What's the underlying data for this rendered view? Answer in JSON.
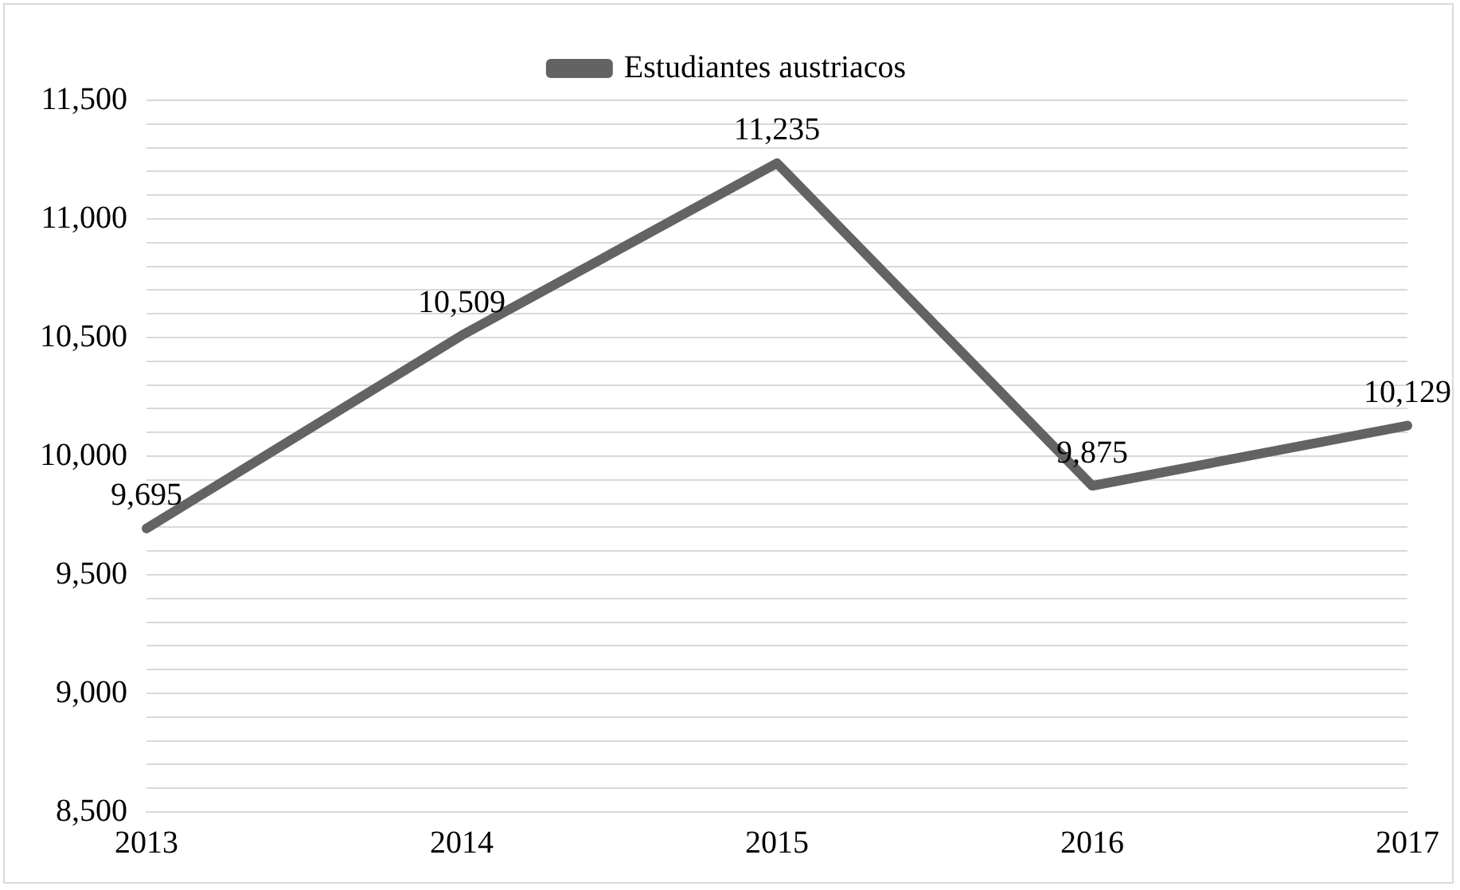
{
  "chart_data": {
    "type": "line",
    "categories": [
      "2013",
      "2014",
      "2015",
      "2016",
      "2017"
    ],
    "series": [
      {
        "name": "Estudiantes austriacos",
        "color": "#636363",
        "values": [
          9695,
          10509,
          11235,
          9875,
          10129
        ],
        "value_labels": [
          "9,695",
          "10,509",
          "11,235",
          "9,875",
          "10,129"
        ]
      }
    ],
    "ylim": [
      8500,
      11500
    ],
    "yticks": [
      {
        "value": 8500,
        "label": "8,500"
      },
      {
        "value": 8600,
        "label": null
      },
      {
        "value": 8700,
        "label": null
      },
      {
        "value": 8800,
        "label": null
      },
      {
        "value": 8900,
        "label": null
      },
      {
        "value": 9000,
        "label": "9,000"
      },
      {
        "value": 9100,
        "label": null
      },
      {
        "value": 9200,
        "label": null
      },
      {
        "value": 9300,
        "label": null
      },
      {
        "value": 9400,
        "label": null
      },
      {
        "value": 9500,
        "label": "9,500"
      },
      {
        "value": 9600,
        "label": null
      },
      {
        "value": 9700,
        "label": null
      },
      {
        "value": 9800,
        "label": null
      },
      {
        "value": 9900,
        "label": null
      },
      {
        "value": 10000,
        "label": "10,000"
      },
      {
        "value": 10100,
        "label": null
      },
      {
        "value": 10200,
        "label": null
      },
      {
        "value": 10300,
        "label": null
      },
      {
        "value": 10400,
        "label": null
      },
      {
        "value": 10500,
        "label": "10,500"
      },
      {
        "value": 10600,
        "label": null
      },
      {
        "value": 10700,
        "label": null
      },
      {
        "value": 10800,
        "label": null
      },
      {
        "value": 10900,
        "label": null
      },
      {
        "value": 11000,
        "label": "11,000"
      },
      {
        "value": 11100,
        "label": null
      },
      {
        "value": 11200,
        "label": null
      },
      {
        "value": 11300,
        "label": null
      },
      {
        "value": 11400,
        "label": null
      },
      {
        "value": 11500,
        "label": "11,500"
      }
    ],
    "grid": "y",
    "legend": "top",
    "marker": "none",
    "line_style": "solid"
  }
}
